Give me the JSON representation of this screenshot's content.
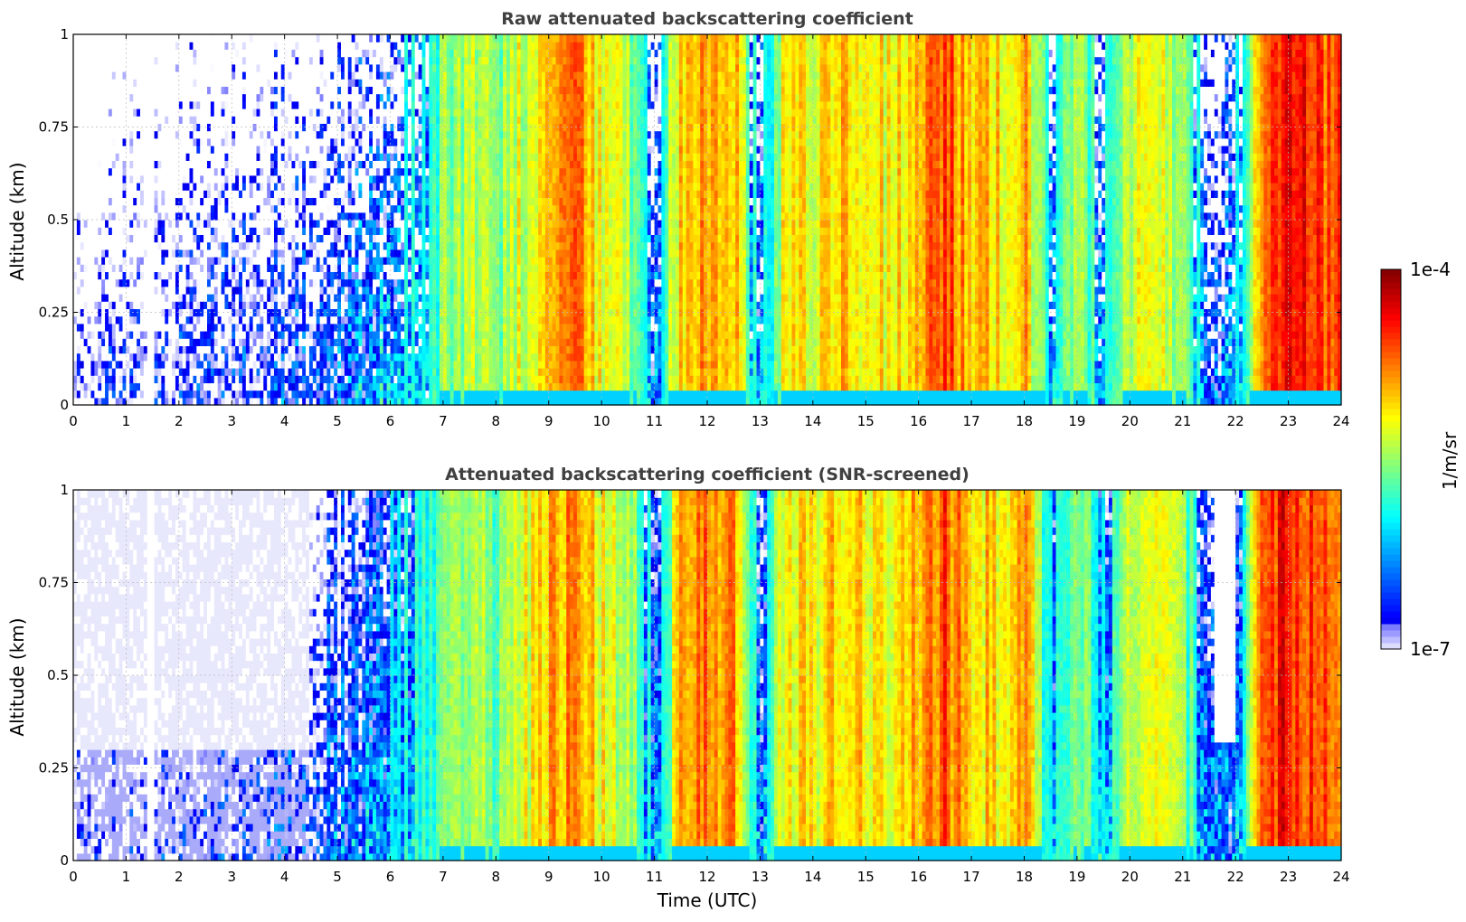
{
  "chart_data": [
    {
      "type": "heatmap",
      "title": "Raw attenuated backscattering coefficient",
      "xlabel": "",
      "ylabel": "Altitude (km)",
      "xlim": [
        0,
        24
      ],
      "ylim": [
        0,
        1
      ],
      "xticks": [
        "0",
        "1",
        "2",
        "3",
        "4",
        "5",
        "6",
        "7",
        "8",
        "9",
        "10",
        "11",
        "12",
        "13",
        "14",
        "15",
        "16",
        "17",
        "18",
        "19",
        "20",
        "21",
        "22",
        "23",
        "24"
      ],
      "yticks": [
        "0",
        "0.25",
        "0.5",
        "0.75",
        "1"
      ],
      "grid": true,
      "screened": false
    },
    {
      "type": "heatmap",
      "title": "Attenuated backscattering coefficient (SNR-screened)",
      "xlabel": "Time (UTC)",
      "ylabel": "Altitude (km)",
      "xlim": [
        0,
        24
      ],
      "ylim": [
        0,
        1
      ],
      "xticks": [
        "0",
        "1",
        "2",
        "3",
        "4",
        "5",
        "6",
        "7",
        "8",
        "9",
        "10",
        "11",
        "12",
        "13",
        "14",
        "15",
        "16",
        "17",
        "18",
        "19",
        "20",
        "21",
        "22",
        "23",
        "24"
      ],
      "yticks": [
        "0",
        "0.25",
        "0.5",
        "0.75",
        "1"
      ],
      "grid": true,
      "screened": true
    }
  ],
  "colorbar": {
    "label": "1/m/sr",
    "max_label": "1e-4",
    "min_label": "1e-7",
    "scale": "log",
    "range": [
      1e-07,
      0.0001
    ],
    "colormap": "jet"
  },
  "column_profile": {
    "comment_free_values": true,
    "time_hours": [
      0,
      1.5,
      3,
      4.5,
      5.5,
      6.5,
      7,
      7.5,
      8,
      8.5,
      9,
      9.5,
      10,
      10.5,
      11,
      11.5,
      12,
      12.5,
      13,
      13.5,
      14,
      14.5,
      15,
      15.5,
      16,
      16.5,
      17,
      17.5,
      18,
      18.5,
      19,
      19.5,
      20,
      20.5,
      21,
      21.5,
      22,
      22.5,
      23,
      23.5,
      24
    ],
    "log10_beta": [
      -7.0,
      -6.9,
      -6.8,
      -6.6,
      -6.3,
      -6.0,
      -5.6,
      -5.4,
      -5.6,
      -5.3,
      -5.0,
      -4.8,
      -5.2,
      -5.4,
      -6.3,
      -5.0,
      -4.8,
      -4.9,
      -6.3,
      -5.1,
      -5.2,
      -5.0,
      -5.1,
      -5.2,
      -4.9,
      -4.6,
      -5.0,
      -5.1,
      -4.9,
      -6.0,
      -5.5,
      -6.1,
      -5.3,
      -5.2,
      -5.5,
      -6.4,
      -6.3,
      -4.7,
      -4.4,
      -4.6,
      -4.6
    ]
  }
}
